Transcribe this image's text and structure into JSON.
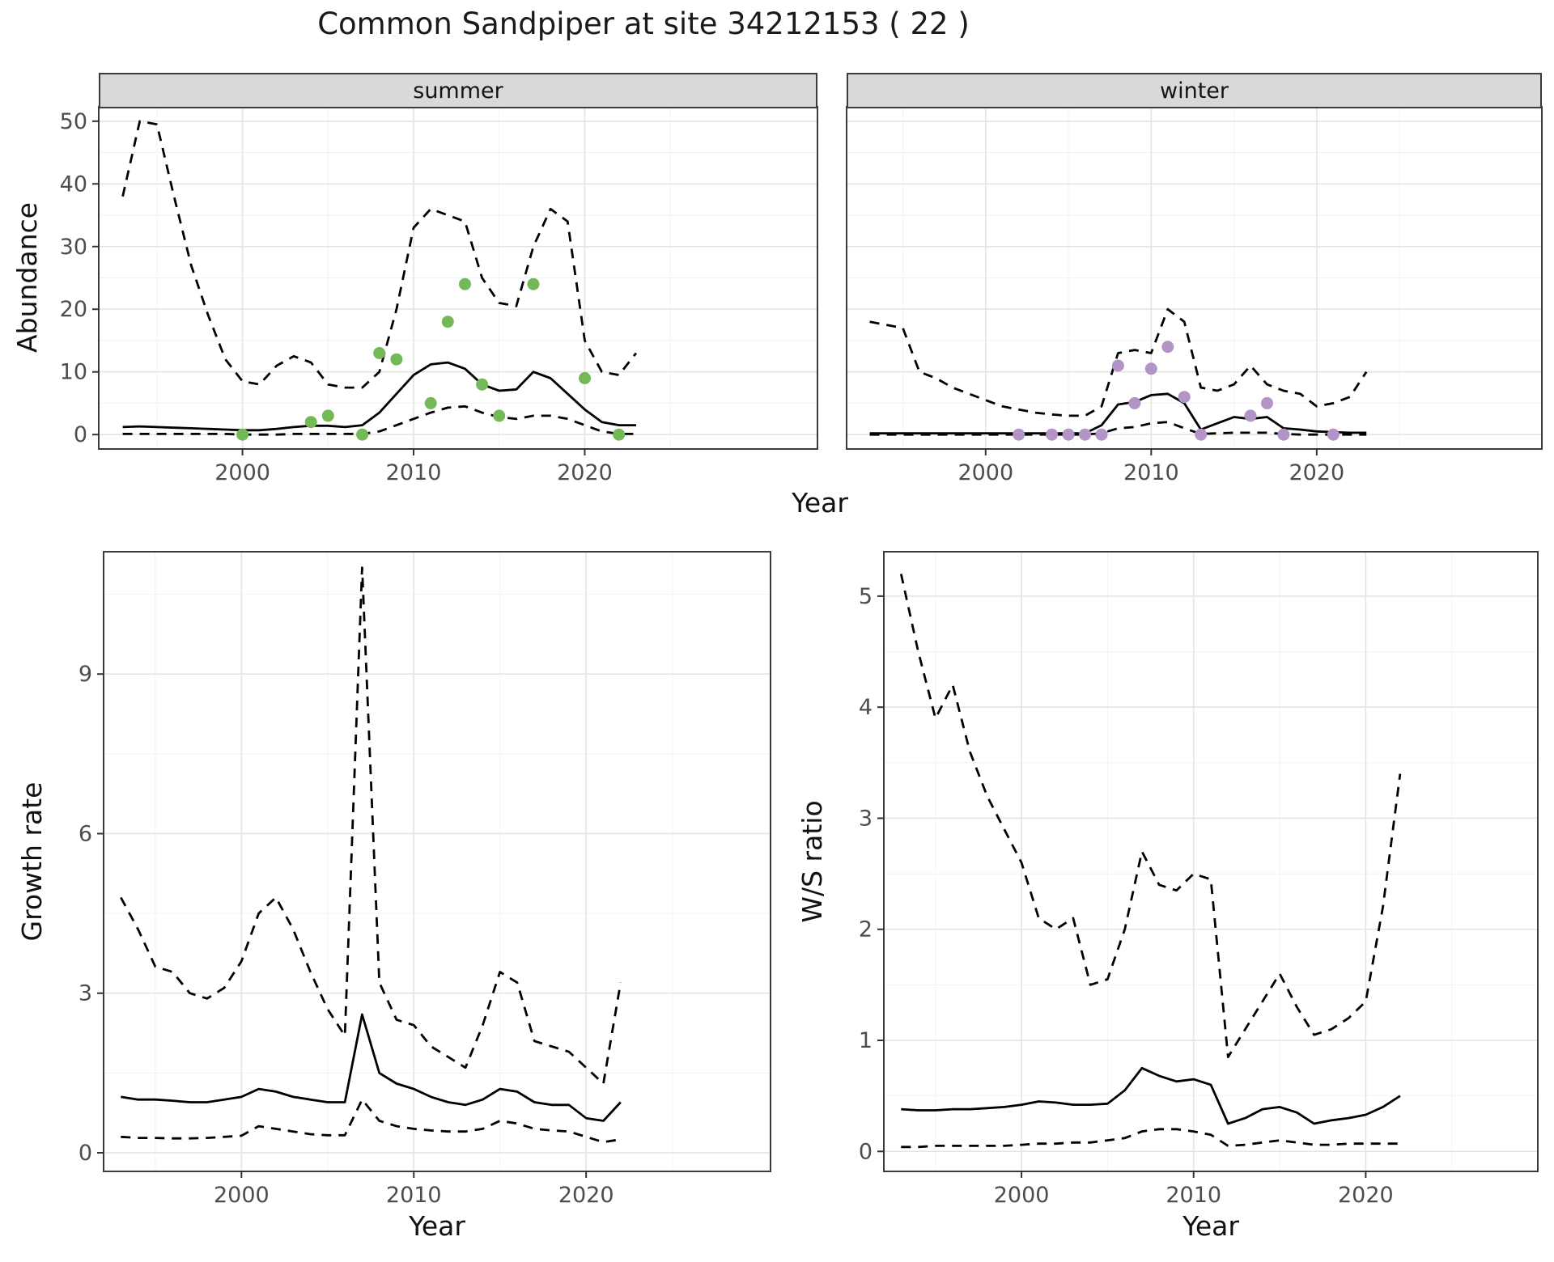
{
  "title": "Common Sandpiper at site 34212153 ( 22 )",
  "colors": {
    "summer_point": "#74b958",
    "winter_point": "#b294c7",
    "line": "#000000",
    "strip_bg": "#d9d9d9",
    "panel_border": "#3b3b3b",
    "grid_major": "#e4e4e4",
    "grid_minor": "#f2f2f2",
    "tick_mark": "#333333",
    "tick_label": "#4d4d4d"
  },
  "chart_data": [
    {
      "id": "abundance-summer",
      "type": "line",
      "facet_label": "summer",
      "ylabel": "Abundance",
      "xlabel": "Year",
      "xlim": [
        1991.6,
        2033.6
      ],
      "ylim": [
        -2.3,
        52.3
      ],
      "xticks": [
        2000,
        2010,
        2020
      ],
      "yticks": [
        0,
        10,
        20,
        30,
        40,
        50
      ],
      "grid": true,
      "legend": "none",
      "x": [
        1993,
        1994,
        1995,
        1996,
        1997,
        1998,
        1999,
        2000,
        2001,
        2002,
        2003,
        2004,
        2005,
        2006,
        2007,
        2008,
        2009,
        2010,
        2011,
        2012,
        2013,
        2014,
        2015,
        2016,
        2017,
        2018,
        2019,
        2020,
        2021,
        2022,
        2023
      ],
      "series": [
        {
          "name": "upper-ci",
          "style": "dashed",
          "values": [
            38,
            50,
            49.5,
            38,
            27,
            19,
            12,
            8.5,
            8,
            11,
            12.5,
            11.5,
            8,
            7.5,
            7.5,
            10,
            20,
            33,
            36,
            35,
            34,
            25,
            21,
            20.5,
            30,
            36,
            34,
            15,
            10,
            9.5,
            13
          ]
        },
        {
          "name": "median",
          "style": "solid",
          "values": [
            1.2,
            1.3,
            1.2,
            1.1,
            1.0,
            0.9,
            0.8,
            0.7,
            0.7,
            0.9,
            1.2,
            1.4,
            1.4,
            1.2,
            1.5,
            3.5,
            6.5,
            9.5,
            11.2,
            11.5,
            10.5,
            8,
            7,
            7.2,
            10,
            9,
            6.5,
            4,
            2,
            1.5,
            1.5
          ]
        },
        {
          "name": "lower-ci",
          "style": "dashed",
          "values": [
            0.1,
            0.1,
            0.1,
            0.1,
            0.1,
            0.1,
            0.1,
            0,
            0,
            0,
            0.1,
            0.1,
            0.1,
            0.1,
            0.1,
            0.5,
            1.5,
            2.5,
            3.5,
            4.3,
            4.5,
            3.5,
            2.8,
            2.5,
            3,
            3,
            2.5,
            1.5,
            0.5,
            0.1,
            0.1
          ]
        }
      ],
      "points": {
        "name": "observed-counts-summer",
        "color": "#74b958",
        "x": [
          2000,
          2004,
          2005,
          2007,
          2008,
          2009,
          2011,
          2012,
          2013,
          2014,
          2015,
          2017,
          2020,
          2022
        ],
        "y": [
          0,
          2,
          3,
          0,
          13,
          12,
          5,
          18,
          24,
          8,
          3,
          24,
          9,
          0
        ]
      }
    },
    {
      "id": "abundance-winter",
      "type": "line",
      "facet_label": "winter",
      "ylabel": "Abundance",
      "xlabel": "Year",
      "xlim": [
        1991.6,
        2033.6
      ],
      "ylim": [
        -2.3,
        52.3
      ],
      "xticks": [
        2000,
        2010,
        2020
      ],
      "yticks": [
        0,
        10,
        20,
        30,
        40,
        50
      ],
      "grid": true,
      "legend": "none",
      "x": [
        1993,
        1994,
        1995,
        1996,
        1997,
        1998,
        1999,
        2000,
        2001,
        2002,
        2003,
        2004,
        2005,
        2006,
        2007,
        2008,
        2009,
        2010,
        2011,
        2012,
        2013,
        2014,
        2015,
        2016,
        2017,
        2018,
        2019,
        2020,
        2021,
        2022,
        2023
      ],
      "series": [
        {
          "name": "upper-ci",
          "style": "dashed",
          "values": [
            18,
            17.5,
            17,
            10,
            9,
            7.5,
            6.5,
            5.5,
            4.5,
            4,
            3.5,
            3.2,
            3,
            3,
            4.5,
            13,
            13.5,
            13,
            20,
            18,
            7.5,
            7,
            8,
            11,
            8,
            7,
            6.5,
            4.5,
            5,
            6,
            10
          ]
        },
        {
          "name": "median",
          "style": "solid",
          "values": [
            0.2,
            0.2,
            0.2,
            0.2,
            0.2,
            0.2,
            0.2,
            0.2,
            0.2,
            0.2,
            0.2,
            0.2,
            0.2,
            0.2,
            1.5,
            4.8,
            5.2,
            6.3,
            6.5,
            5,
            0.8,
            1.8,
            2.8,
            2.5,
            2.8,
            1,
            0.8,
            0.5,
            0.4,
            0.3,
            0.3
          ]
        },
        {
          "name": "lower-ci",
          "style": "dashed",
          "values": [
            0,
            0,
            0,
            0,
            0,
            0,
            0,
            0,
            0,
            0,
            0,
            0,
            0,
            0,
            0.2,
            1,
            1.2,
            1.8,
            2,
            1,
            0.1,
            0.2,
            0.3,
            0.3,
            0.3,
            0.1,
            0,
            0,
            0,
            0,
            0
          ]
        }
      ],
      "points": {
        "name": "observed-counts-winter",
        "color": "#b294c7",
        "x": [
          2002,
          2004,
          2005,
          2006,
          2007,
          2008,
          2009,
          2010,
          2011,
          2012,
          2013,
          2016,
          2017,
          2018,
          2021
        ],
        "y": [
          0,
          0,
          0,
          0,
          0,
          11,
          5,
          10.5,
          14,
          6,
          0,
          3,
          5,
          0,
          0
        ]
      }
    },
    {
      "id": "growth-rate",
      "type": "line",
      "facet_label": "",
      "ylabel": "Growth rate",
      "xlabel": "Year",
      "xlim": [
        1992,
        2030.7
      ],
      "ylim": [
        -0.35,
        11.3
      ],
      "xticks": [
        2000,
        2010,
        2020
      ],
      "yticks": [
        0,
        3,
        6,
        9
      ],
      "grid": true,
      "legend": "none",
      "x": [
        1993,
        1994,
        1995,
        1996,
        1997,
        1998,
        1999,
        2000,
        2001,
        2002,
        2003,
        2004,
        2005,
        2006,
        2007,
        2008,
        2009,
        2010,
        2011,
        2012,
        2013,
        2014,
        2015,
        2016,
        2017,
        2018,
        2019,
        2020,
        2021,
        2022
      ],
      "series": [
        {
          "name": "upper-ci",
          "style": "dashed",
          "values": [
            4.8,
            4.2,
            3.5,
            3.4,
            3.0,
            2.9,
            3.1,
            3.6,
            4.5,
            4.8,
            4.2,
            3.4,
            2.7,
            2.2,
            11,
            3.2,
            2.5,
            2.4,
            2.0,
            1.8,
            1.6,
            2.4,
            3.4,
            3.2,
            2.1,
            2.0,
            1.9,
            1.6,
            1.3,
            3.2
          ]
        },
        {
          "name": "median",
          "style": "solid",
          "values": [
            1.05,
            1.0,
            1.0,
            0.98,
            0.95,
            0.95,
            1.0,
            1.05,
            1.2,
            1.15,
            1.05,
            1.0,
            0.95,
            0.95,
            2.6,
            1.5,
            1.3,
            1.2,
            1.05,
            0.95,
            0.9,
            1.0,
            1.2,
            1.15,
            0.95,
            0.9,
            0.9,
            0.65,
            0.6,
            0.95
          ]
        },
        {
          "name": "lower-ci",
          "style": "dashed",
          "values": [
            0.3,
            0.28,
            0.28,
            0.27,
            0.27,
            0.28,
            0.3,
            0.32,
            0.5,
            0.45,
            0.4,
            0.35,
            0.33,
            0.33,
            1.0,
            0.6,
            0.5,
            0.45,
            0.42,
            0.4,
            0.4,
            0.45,
            0.6,
            0.55,
            0.45,
            0.42,
            0.4,
            0.3,
            0.2,
            0.25
          ]
        }
      ],
      "points": null
    },
    {
      "id": "ws-ratio",
      "type": "line",
      "facet_label": "",
      "ylabel": "W/S ratio",
      "xlabel": "Year",
      "xlim": [
        1992,
        2030
      ],
      "ylim": [
        -0.18,
        5.4
      ],
      "xticks": [
        2000,
        2010,
        2020
      ],
      "yticks": [
        0,
        1,
        2,
        3,
        4,
        5
      ],
      "grid": true,
      "legend": "none",
      "x": [
        1993,
        1994,
        1995,
        1996,
        1997,
        1998,
        1999,
        2000,
        2001,
        2002,
        2003,
        2004,
        2005,
        2006,
        2007,
        2008,
        2009,
        2010,
        2011,
        2012,
        2013,
        2014,
        2015,
        2016,
        2017,
        2018,
        2019,
        2020,
        2021,
        2022
      ],
      "series": [
        {
          "name": "upper-ci",
          "style": "dashed",
          "values": [
            5.2,
            4.5,
            3.9,
            4.2,
            3.6,
            3.2,
            2.9,
            2.6,
            2.1,
            2.0,
            2.1,
            1.5,
            1.55,
            2.0,
            2.7,
            2.4,
            2.35,
            2.5,
            2.45,
            0.85,
            1.1,
            1.35,
            1.6,
            1.3,
            1.05,
            1.1,
            1.2,
            1.35,
            2.2,
            3.4
          ]
        },
        {
          "name": "median",
          "style": "solid",
          "values": [
            0.38,
            0.37,
            0.37,
            0.38,
            0.38,
            0.39,
            0.4,
            0.42,
            0.45,
            0.44,
            0.42,
            0.42,
            0.43,
            0.55,
            0.75,
            0.68,
            0.63,
            0.65,
            0.6,
            0.25,
            0.3,
            0.38,
            0.4,
            0.35,
            0.25,
            0.28,
            0.3,
            0.33,
            0.4,
            0.5
          ]
        },
        {
          "name": "lower-ci",
          "style": "dashed",
          "values": [
            0.04,
            0.04,
            0.05,
            0.05,
            0.05,
            0.05,
            0.05,
            0.06,
            0.07,
            0.07,
            0.08,
            0.08,
            0.1,
            0.12,
            0.18,
            0.2,
            0.2,
            0.18,
            0.15,
            0.05,
            0.06,
            0.08,
            0.1,
            0.08,
            0.06,
            0.06,
            0.07,
            0.07,
            0.07,
            0.07
          ]
        }
      ],
      "points": null
    }
  ]
}
